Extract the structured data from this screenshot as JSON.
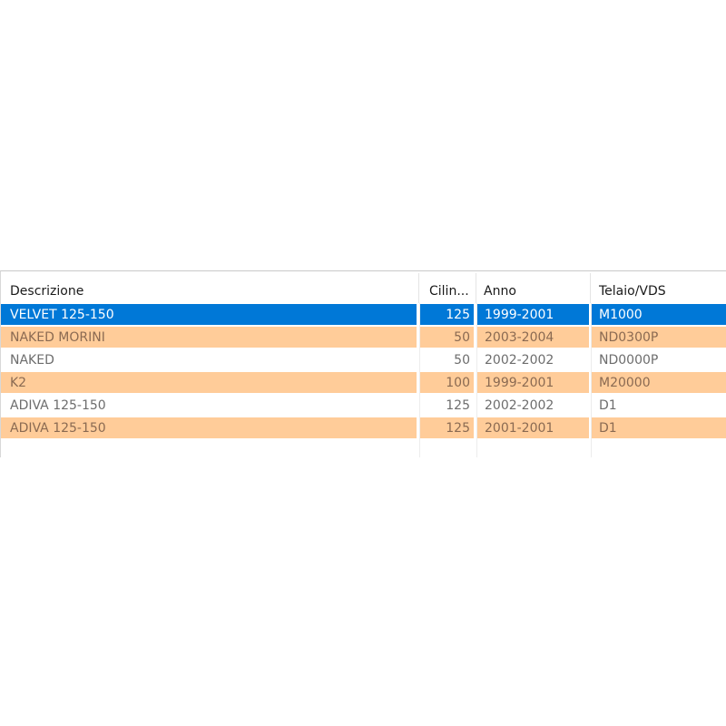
{
  "grid": {
    "columns": [
      {
        "label": "Descrizione"
      },
      {
        "label": "Cilin..."
      },
      {
        "label": "Anno"
      },
      {
        "label": "Telaio/VDS"
      }
    ],
    "rows": [
      {
        "descrizione": "VELVET 125-150",
        "cilindrata": "125",
        "anno": "1999-2001",
        "telaio": "M1000",
        "state": "selected"
      },
      {
        "descrizione": "NAKED MORINI",
        "cilindrata": "50",
        "anno": "2003-2004",
        "telaio": "ND0300P",
        "state": "alt"
      },
      {
        "descrizione": "NAKED",
        "cilindrata": "50",
        "anno": "2002-2002",
        "telaio": "ND0000P",
        "state": "plain"
      },
      {
        "descrizione": "K2",
        "cilindrata": "100",
        "anno": "1999-2001",
        "telaio": "M20000",
        "state": "alt"
      },
      {
        "descrizione": "ADIVA 125-150",
        "cilindrata": "125",
        "anno": "2002-2002",
        "telaio": "D1",
        "state": "plain"
      },
      {
        "descrizione": "ADIVA 125-150",
        "cilindrata": "125",
        "anno": "2001-2001",
        "telaio": "D1",
        "state": "alt"
      }
    ],
    "colors": {
      "selected_bg": "#0078d7",
      "alt_row_bg": "#ffcc99",
      "plain_row_bg": "#ffffff"
    }
  }
}
